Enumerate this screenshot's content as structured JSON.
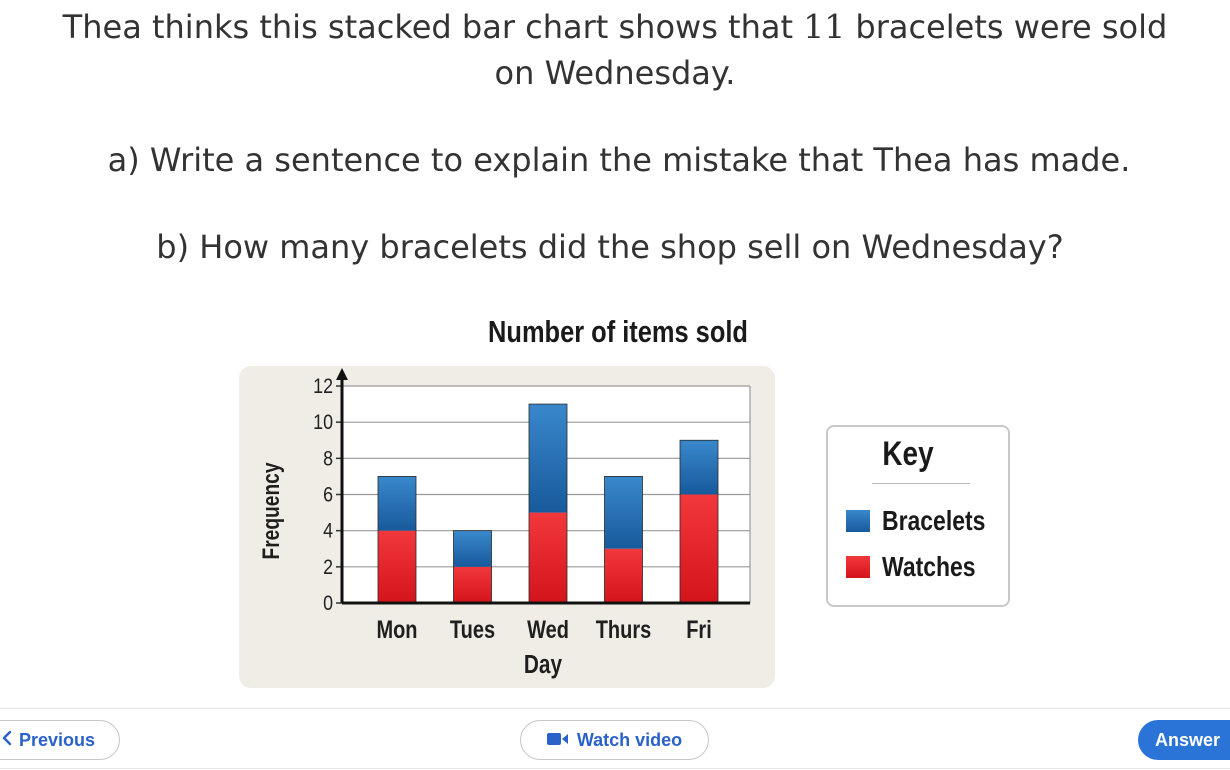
{
  "question": {
    "intro_before": "Thea thinks this stacked bar chart shows that ",
    "intro_number": "11",
    "intro_after": " bracelets were sold",
    "intro_line2": "on Wednesday.",
    "part_a": "a) Write a sentence to explain the mistake that Thea has made.",
    "part_b": "b) How many bracelets did the shop sell on Wednesday?"
  },
  "key": {
    "title": "Key",
    "items": [
      {
        "label": "Bracelets",
        "color": "#1f70b8"
      },
      {
        "label": "Watches",
        "color": "#e41d24"
      }
    ]
  },
  "nav": {
    "previous_label": "Previous",
    "previous_icon": "chevron-left-icon",
    "video_label": "Watch video",
    "video_icon": "video-camera-icon",
    "answer_label": "Answer"
  },
  "colors": {
    "link": "#2a62c9",
    "answer_bg": "#2a74d8",
    "bracelets": "#1f70b8",
    "watches": "#e41d24",
    "panel": "#f0ede6"
  },
  "chart_data": {
    "type": "bar",
    "stacked": true,
    "title": "Number of items sold",
    "xlabel": "Day",
    "ylabel": "Frequency",
    "categories": [
      "Mon",
      "Tues",
      "Wed",
      "Thurs",
      "Fri"
    ],
    "series": [
      {
        "name": "Watches",
        "values": [
          4,
          2,
          5,
          3,
          6
        ],
        "color": "#e41d24"
      },
      {
        "name": "Bracelets",
        "values": [
          3,
          2,
          6,
          4,
          3
        ],
        "color": "#1f70b8"
      }
    ],
    "yticks": [
      0,
      2,
      4,
      6,
      8,
      10,
      12
    ],
    "ylim": [
      0,
      12
    ],
    "grid": true,
    "legend_position": "right"
  }
}
